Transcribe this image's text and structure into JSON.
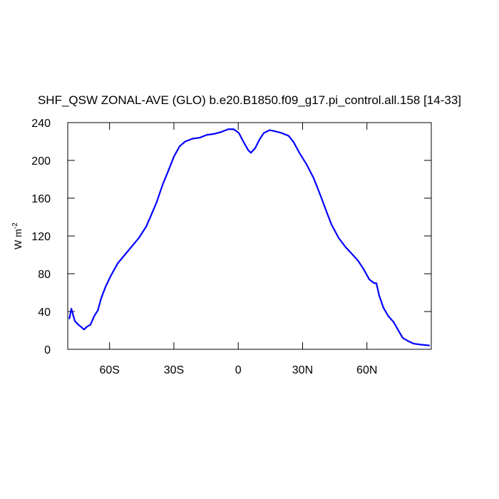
{
  "chart_data": {
    "type": "line",
    "title": "SHF_QSW ZONAL-AVE (GLO) b.e20.B1850.f09_g17.pi_control.all.158 [14-33]",
    "ylabel": "W m",
    "ylabel_sup": "-2",
    "xlim": [
      -79.5,
      90
    ],
    "ylim": [
      0,
      240
    ],
    "xticks": [
      {
        "value": -60,
        "label": "60S"
      },
      {
        "value": -30,
        "label": "30S"
      },
      0,
      {
        "value": 30,
        "label": "30N"
      },
      {
        "value": 60,
        "label": "60N"
      }
    ],
    "yticks": [
      0,
      40,
      80,
      120,
      160,
      200,
      240
    ],
    "series": [
      {
        "color": "#0000ff",
        "x": [
          -78.8,
          -77.8,
          -77.2,
          -76.2,
          -74.5,
          -72.9,
          -71.9,
          -70.5,
          -68.9,
          -67.2,
          -65.5,
          -63.9,
          -61.9,
          -59.6,
          -56.2,
          -52.9,
          -49.6,
          -46.3,
          -42.9,
          -40.6,
          -38,
          -35.3,
          -32.6,
          -30,
          -27.3,
          -24.7,
          -21.3,
          -18,
          -14.7,
          -11.4,
          -8,
          -4.7,
          -2.1,
          0.3,
          2.6,
          4.6,
          5.9,
          7.9,
          9.9,
          11.9,
          14.6,
          16.9,
          20.2,
          23.5,
          25.9,
          28.5,
          31.8,
          35.2,
          38.5,
          41.1,
          43.5,
          46.8,
          50.1,
          53.4,
          55.8,
          58.4,
          61.1,
          63.4,
          64.4,
          65.7,
          67.7,
          70,
          72.4,
          74.4,
          76.7,
          79,
          81.7,
          85,
          89.3
        ],
        "values": [
          32,
          43,
          38,
          30,
          26,
          23,
          21,
          24,
          26,
          35,
          41,
          54,
          66,
          77,
          91,
          100,
          109,
          118,
          130,
          142,
          156,
          174,
          189,
          204,
          215,
          220,
          223,
          224,
          227,
          228,
          230,
          233,
          233,
          229,
          219,
          211,
          208,
          213,
          222,
          229,
          232,
          231,
          229,
          226,
          219,
          208,
          196,
          181,
          162,
          146,
          132,
          118,
          108,
          100,
          94,
          85,
          74,
          70,
          70,
          57,
          44,
          35,
          29,
          21,
          12,
          9,
          6,
          5,
          4
        ]
      }
    ]
  }
}
